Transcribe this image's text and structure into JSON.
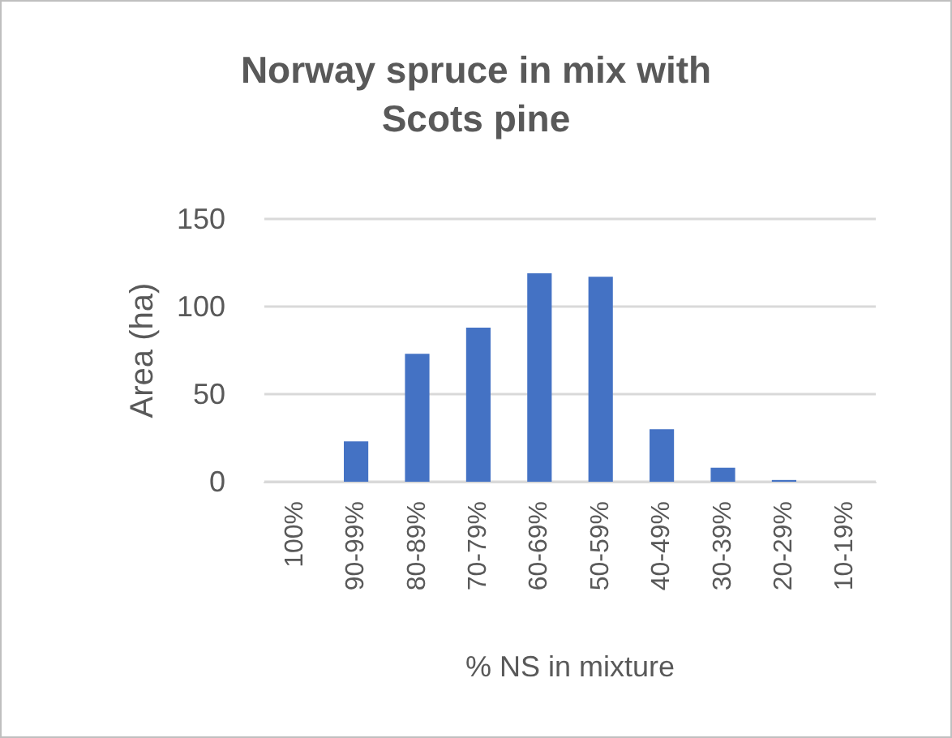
{
  "chart_data": {
    "type": "bar",
    "title": "Norway spruce in mix with\nScots pine",
    "xlabel": "% NS in mixture",
    "ylabel": "Area (ha)",
    "categories": [
      "100%",
      "90-99%",
      "80-89%",
      "70-79%",
      "60-69%",
      "50-59%",
      "40-49%",
      "30-39%",
      "20-29%",
      "10-19%"
    ],
    "values": [
      0,
      23,
      73,
      88,
      119,
      117,
      30,
      8,
      1,
      0
    ],
    "color": "#4472c4",
    "ylim": [
      0,
      150
    ],
    "yticks": [
      0,
      50,
      100,
      150
    ],
    "grid": "y"
  }
}
